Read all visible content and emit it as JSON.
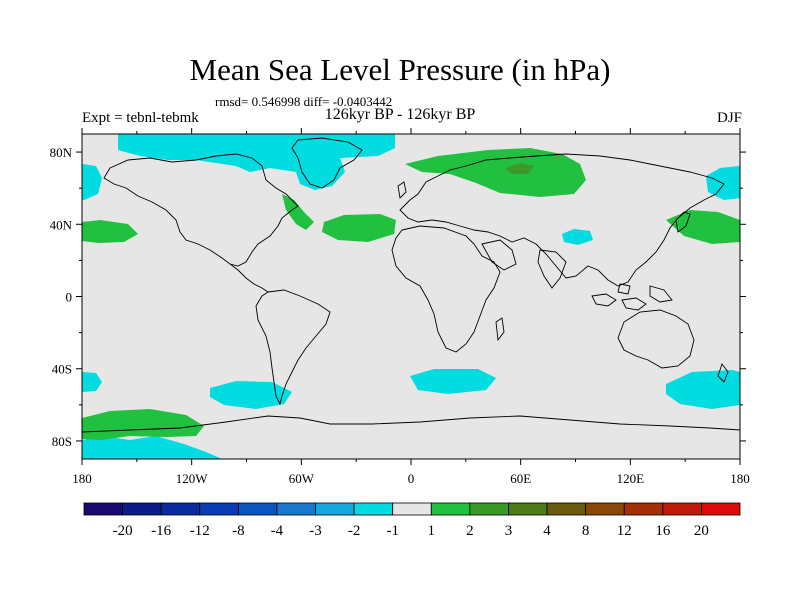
{
  "title": "Mean Sea Level Pressure (in hPa)",
  "stats": "rmsd= 0.546998 diff= -0.0403442",
  "experiment": "Expt = tebnl-tebmk",
  "period": "126kyr BP - 126kyr BP",
  "season": "DJF",
  "chart_data": {
    "type": "map-contour",
    "variable": "Mean Sea Level Pressure difference",
    "units": "hPa",
    "lon_ticks": [
      "180",
      "120W",
      "60W",
      "0",
      "60E",
      "120E",
      "180"
    ],
    "lat_ticks": [
      "80N",
      "40N",
      "0",
      "40S",
      "80S"
    ],
    "lon_range": [
      -180,
      180
    ],
    "lat_range": [
      -90,
      90
    ],
    "colorbar": {
      "labels": [
        "-20",
        "-16",
        "-12",
        "-8",
        "-4",
        "-3",
        "-2",
        "-1",
        "1",
        "2",
        "3",
        "4",
        "8",
        "12",
        "16",
        "20"
      ],
      "colors": [
        "#1a0a6e",
        "#0c1a8a",
        "#0a2aa0",
        "#0a3cb4",
        "#0a55c0",
        "#1a78cc",
        "#14a8dc",
        "#00dce0",
        "#e6e6e6",
        "#22c040",
        "#3a9a28",
        "#4e7a18",
        "#6a5a0e",
        "#8a4808",
        "#a43008",
        "#c01a08",
        "#dc0a0a"
      ]
    },
    "background_color": "#e6e6e6"
  }
}
